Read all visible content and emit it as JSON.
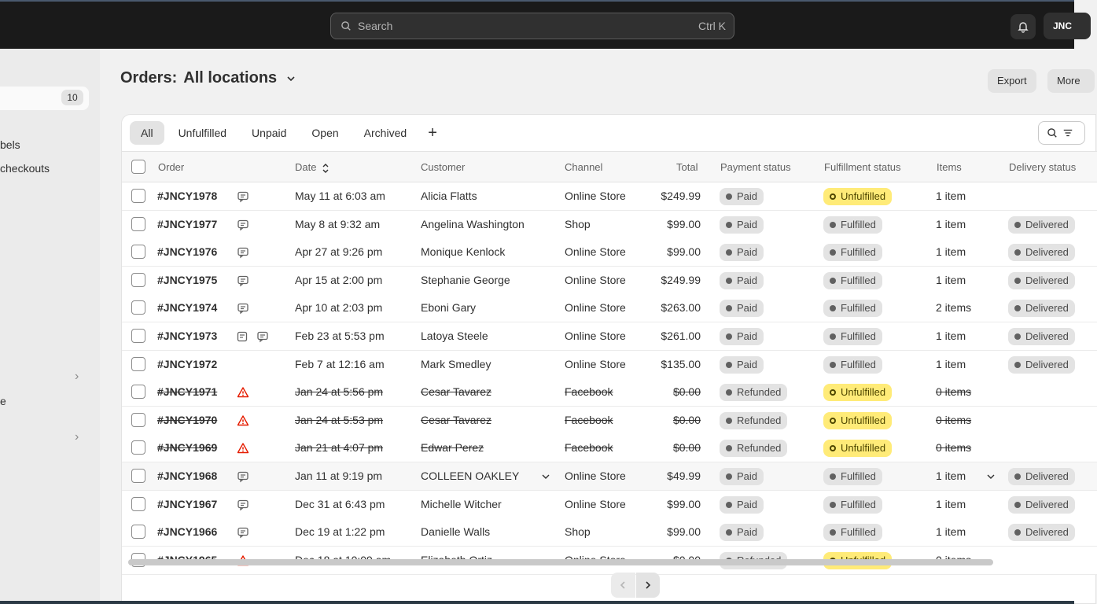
{
  "topbar": {
    "search_placeholder": "Search",
    "search_shortcut": "Ctrl K",
    "store_initials": "JNC"
  },
  "sidebar": {
    "badge_count": "10",
    "item_labels": "bels",
    "item_checkouts": "checkouts",
    "item_e": "e"
  },
  "page": {
    "title": "Orders:",
    "location": "All locations",
    "export_label": "Export",
    "more_label": "More"
  },
  "tabs": [
    "All",
    "Unfulfilled",
    "Unpaid",
    "Open",
    "Archived"
  ],
  "columns": {
    "order": "Order",
    "date": "Date",
    "customer": "Customer",
    "channel": "Channel",
    "total": "Total",
    "payment": "Payment status",
    "fulfillment": "Fulfillment status",
    "items": "Items",
    "delivery": "Delivery status"
  },
  "orders": [
    {
      "order": "#JNCY1978",
      "date": "May 11 at 6:03 am",
      "customer": "Alicia Flatts",
      "channel": "Online Store",
      "total": "$249.99",
      "payment": "Paid",
      "fulfillment": "Unfulfilled",
      "items": "1 item",
      "delivery": ""
    },
    {
      "order": "#JNCY1977",
      "date": "May 8 at 9:32 am",
      "customer": "Angelina Washington",
      "channel": "Shop",
      "total": "$99.00",
      "payment": "Paid",
      "fulfillment": "Fulfilled",
      "items": "1 item",
      "delivery": "Delivered"
    },
    {
      "order": "#JNCY1976",
      "date": "Apr 27 at 9:26 pm",
      "customer": "Monique Kenlock",
      "channel": "Online Store",
      "total": "$99.00",
      "payment": "Paid",
      "fulfillment": "Fulfilled",
      "items": "1 item",
      "delivery": "Delivered"
    },
    {
      "order": "#JNCY1975",
      "date": "Apr 15 at 2:00 pm",
      "customer": "Stephanie George",
      "channel": "Online Store",
      "total": "$249.99",
      "payment": "Paid",
      "fulfillment": "Fulfilled",
      "items": "1 item",
      "delivery": "Delivered"
    },
    {
      "order": "#JNCY1974",
      "date": "Apr 10 at 2:03 pm",
      "customer": "Eboni Gary",
      "channel": "Online Store",
      "total": "$263.00",
      "payment": "Paid",
      "fulfillment": "Fulfilled",
      "items": "2 items",
      "delivery": "Delivered"
    },
    {
      "order": "#JNCY1973",
      "date": "Feb 23 at 5:53 pm",
      "customer": "Latoya Steele",
      "channel": "Online Store",
      "total": "$261.00",
      "payment": "Paid",
      "fulfillment": "Fulfilled",
      "items": "1 item",
      "delivery": "Delivered"
    },
    {
      "order": "#JNCY1972",
      "date": "Feb 7 at 12:16 am",
      "customer": "Mark Smedley",
      "channel": "Online Store",
      "total": "$135.00",
      "payment": "Paid",
      "fulfillment": "Fulfilled",
      "items": "1 item",
      "delivery": "Delivered"
    },
    {
      "order": "#JNCY1971",
      "date": "Jan 24 at 5:56 pm",
      "customer": "Cesar Tavarez",
      "channel": "Facebook",
      "total": "$0.00",
      "payment": "Refunded",
      "fulfillment": "Unfulfilled",
      "items": "0 items",
      "delivery": ""
    },
    {
      "order": "#JNCY1970",
      "date": "Jan 24 at 5:53 pm",
      "customer": "Cesar Tavarez",
      "channel": "Facebook",
      "total": "$0.00",
      "payment": "Refunded",
      "fulfillment": "Unfulfilled",
      "items": "0 items",
      "delivery": ""
    },
    {
      "order": "#JNCY1969",
      "date": "Jan 21 at 4:07 pm",
      "customer": "Edwar Perez",
      "channel": "Facebook",
      "total": "$0.00",
      "payment": "Refunded",
      "fulfillment": "Unfulfilled",
      "items": "0 items",
      "delivery": ""
    },
    {
      "order": "#JNCY1968",
      "date": "Jan 11 at 9:19 pm",
      "customer": "COLLEEN OAKLEY",
      "channel": "Online Store",
      "total": "$49.99",
      "payment": "Paid",
      "fulfillment": "Fulfilled",
      "items": "1 item",
      "delivery": "Delivered"
    },
    {
      "order": "#JNCY1967",
      "date": "Dec 31 at 6:43 pm",
      "customer": "Michelle Witcher",
      "channel": "Online Store",
      "total": "$99.00",
      "payment": "Paid",
      "fulfillment": "Fulfilled",
      "items": "1 item",
      "delivery": "Delivered"
    },
    {
      "order": "#JNCY1966",
      "date": "Dec 19 at 1:22 pm",
      "customer": "Danielle Walls",
      "channel": "Shop",
      "total": "$99.00",
      "payment": "Paid",
      "fulfillment": "Fulfilled",
      "items": "1 item",
      "delivery": "Delivered"
    },
    {
      "order": "#JNCY1965",
      "date": "Dec 18 at 10:09 am",
      "customer": "Elizabeth Ortiz",
      "channel": "Online Store",
      "total": "$0.00",
      "payment": "Refunded",
      "fulfillment": "Unfulfilled",
      "items": "0 items",
      "delivery": ""
    }
  ],
  "colors": {
    "topbar": "#1a1a1a",
    "unfulfilled_badge": "#ffeb78",
    "neutral_badge": "#e3e3e3",
    "warning_icon": "#e51c00"
  }
}
